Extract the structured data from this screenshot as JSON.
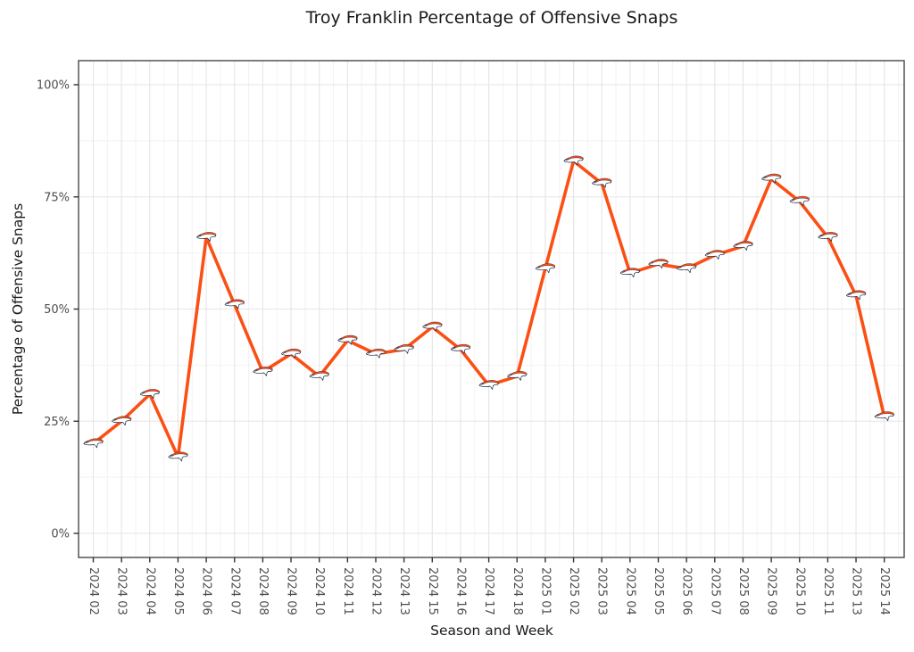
{
  "chart_data": {
    "type": "line",
    "title": "Troy Franklin Percentage of Offensive Snaps",
    "xlabel": "Season and Week",
    "ylabel": "Percentage of Offensive Snaps",
    "categories": [
      "2024 02",
      "2024 03",
      "2024 04",
      "2024 05",
      "2024 06",
      "2024 07",
      "2024 08",
      "2024 09",
      "2024 10",
      "2024 11",
      "2024 12",
      "2024 13",
      "2024 15",
      "2024 16",
      "2024 17",
      "2024 18",
      "2025 01",
      "2025 02",
      "2025 03",
      "2025 04",
      "2025 05",
      "2025 06",
      "2025 07",
      "2025 08",
      "2025 09",
      "2025 10",
      "2025 11",
      "2025 13",
      "2025 14"
    ],
    "series": [
      {
        "name": "Troy Franklin offensive snap percentage",
        "marker": "broncos-horse-logo",
        "values": [
          20,
          25,
          31,
          17,
          66,
          51,
          36,
          40,
          35,
          43,
          40,
          41,
          46,
          41,
          33,
          35,
          59,
          83,
          78,
          58,
          60,
          59,
          62,
          64,
          79,
          74,
          66,
          53,
          26
        ]
      }
    ],
    "ylim": [
      0,
      100
    ],
    "yticks": [
      0,
      25,
      50,
      75,
      100
    ],
    "ytick_labels": [
      "0%",
      "25%",
      "50%",
      "75%",
      "100%"
    ],
    "grid": "major-and-minor",
    "legend": "none",
    "colors": {
      "line": "#FB4F14",
      "marker_mane": "#FB4F14",
      "marker_body": "#FFFFFF",
      "marker_outline": "#0A2343",
      "grid_major": "#E5E5E5",
      "grid_minor": "#F2F2F2",
      "panel_border": "#474747",
      "tick_mark": "#333333",
      "tick_label": "#4D4D4D",
      "title_text": "#1A1A1A"
    }
  }
}
